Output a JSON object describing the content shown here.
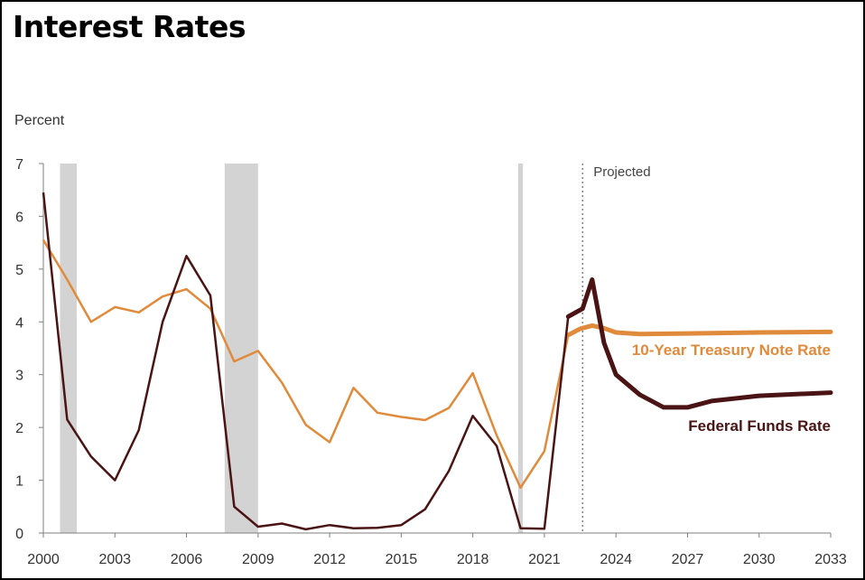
{
  "chart_data": {
    "type": "line",
    "title": "Interest Rates",
    "ylabel": "Percent",
    "xlabel": "",
    "xlim": [
      2000,
      2033
    ],
    "ylim": [
      0,
      7
    ],
    "x_ticks": [
      "2000",
      "2003",
      "2006",
      "2009",
      "2012",
      "2015",
      "2018",
      "2021",
      "2024",
      "2027",
      "2030",
      "2033"
    ],
    "y_ticks": [
      "0",
      "1",
      "2",
      "3",
      "4",
      "5",
      "6",
      "7"
    ],
    "projection_label": "Projected",
    "projection_start": 2022.6,
    "recessions": [
      [
        2000.7,
        2001.4
      ],
      [
        2007.6,
        2009.0
      ],
      [
        2019.9,
        2020.1
      ]
    ],
    "colors": {
      "treasury": "#E08A3C",
      "fedfunds": "#4A1414",
      "recession": "#D3D3D3"
    },
    "series": [
      {
        "name": "10-Year Treasury Note Rate",
        "x": [
          2000,
          2001,
          2002,
          2003,
          2004,
          2005,
          2006,
          2007,
          2008,
          2009,
          2010,
          2011,
          2012,
          2013,
          2014,
          2015,
          2016,
          2017,
          2018,
          2019,
          2020,
          2021,
          2022,
          2022.5,
          2023,
          2023.5,
          2024,
          2025,
          2027,
          2030,
          2033
        ],
        "y": [
          5.55,
          4.8,
          4.0,
          4.28,
          4.18,
          4.48,
          4.62,
          4.25,
          3.25,
          3.45,
          2.85,
          2.05,
          1.72,
          2.75,
          2.28,
          2.2,
          2.14,
          2.37,
          3.03,
          1.85,
          0.86,
          1.55,
          3.75,
          3.87,
          3.93,
          3.88,
          3.8,
          3.77,
          3.78,
          3.8,
          3.81
        ]
      },
      {
        "name": "Federal Funds Rate",
        "x": [
          2000,
          2001,
          2002,
          2003,
          2004,
          2005,
          2006,
          2007,
          2008,
          2009,
          2010,
          2011,
          2012,
          2013,
          2014,
          2015,
          2016,
          2017,
          2018,
          2019,
          2020,
          2021,
          2022,
          2022.6,
          2023,
          2023.5,
          2024,
          2025,
          2026,
          2027,
          2028,
          2030,
          2033
        ],
        "y": [
          6.45,
          2.15,
          1.45,
          1.0,
          1.95,
          4.0,
          5.25,
          4.5,
          0.5,
          0.12,
          0.18,
          0.07,
          0.15,
          0.09,
          0.1,
          0.15,
          0.45,
          1.18,
          2.22,
          1.65,
          0.09,
          0.08,
          4.1,
          4.25,
          4.8,
          3.6,
          3.0,
          2.62,
          2.38,
          2.38,
          2.5,
          2.6,
          2.66
        ]
      }
    ]
  }
}
